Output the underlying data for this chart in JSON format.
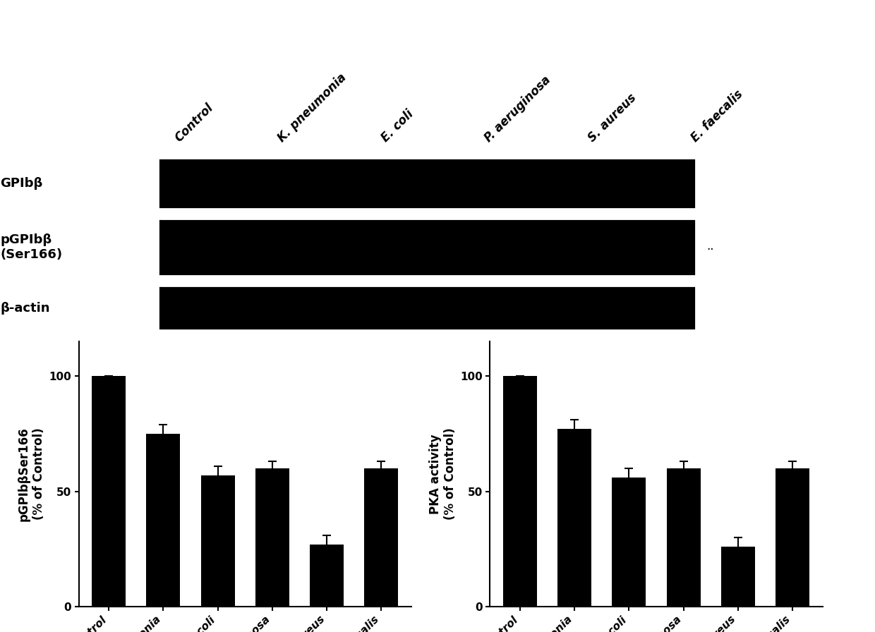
{
  "blot_labels": [
    "GPIbβ",
    "pGPIbβ\n(Ser166)",
    "β-actin"
  ],
  "col_labels": [
    "Control",
    "K. pneumonia",
    "E. coli",
    "P. aeruginosa",
    "S. aureus",
    "E. faecalis"
  ],
  "bar_categories": [
    "Control",
    "K. pneumonia",
    "E.coli",
    "P. aeruginosa",
    "S. aureus",
    "E. faecalis"
  ],
  "bar1_values": [
    100,
    75,
    57,
    60,
    27,
    60
  ],
  "bar1_errors": [
    0,
    4,
    4,
    3,
    4,
    3
  ],
  "bar2_values": [
    100,
    77,
    56,
    60,
    26,
    60
  ],
  "bar2_errors": [
    0,
    4,
    4,
    3,
    4,
    3
  ],
  "bar1_ylabel": "pGPIbβSer166\n(% of Control)",
  "bar2_ylabel": "PKA activity\n(% of Control)",
  "bar_color": "#000000",
  "background_color": "#ffffff",
  "ylim": [
    0,
    115
  ],
  "yticks": [
    0,
    50,
    100
  ],
  "axis_fontsize": 12,
  "tick_fontsize": 11,
  "blot_col_count": 6
}
